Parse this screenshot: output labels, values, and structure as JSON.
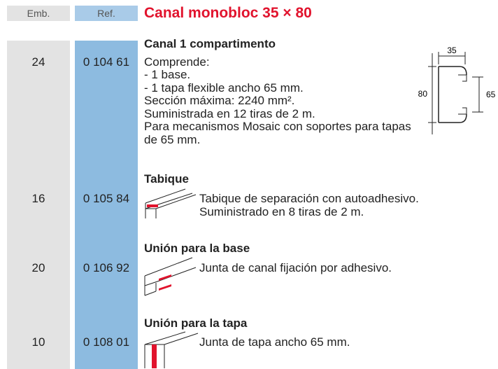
{
  "header": {
    "emb_label": "Emb.",
    "ref_label": "Ref.",
    "title": "Canal monobloc 35 × 80"
  },
  "items": [
    {
      "emb": "24",
      "ref": "0 104 61",
      "name": "Canal 1 compartimento",
      "description": [
        "Comprende:",
        "- 1 base.",
        "- 1 tapa flexible ancho 65 mm.",
        "Sección máxima: 2240 mm².",
        "Suministrada en 12 tiras de 2 m.",
        "Para mecanismos Mosaic con soportes para tapas",
        "de 65 mm."
      ]
    },
    {
      "emb": "16",
      "ref": "0 105 84",
      "name": "Tabique",
      "description": [
        "Tabique de separación con autoadhesivo.",
        "Suministrado en 8 tiras de 2 m."
      ]
    },
    {
      "emb": "20",
      "ref": "0 106 92",
      "name": "Unión para la base",
      "description": [
        "Junta de canal fijación por adhesivo."
      ]
    },
    {
      "emb": "10",
      "ref": "0 108 01",
      "name": "Unión para la tapa",
      "description": [
        "Junta de tapa ancho 65 mm."
      ]
    }
  ],
  "diagram": {
    "width_label": "35",
    "height_label": "80",
    "inner_label": "65"
  }
}
